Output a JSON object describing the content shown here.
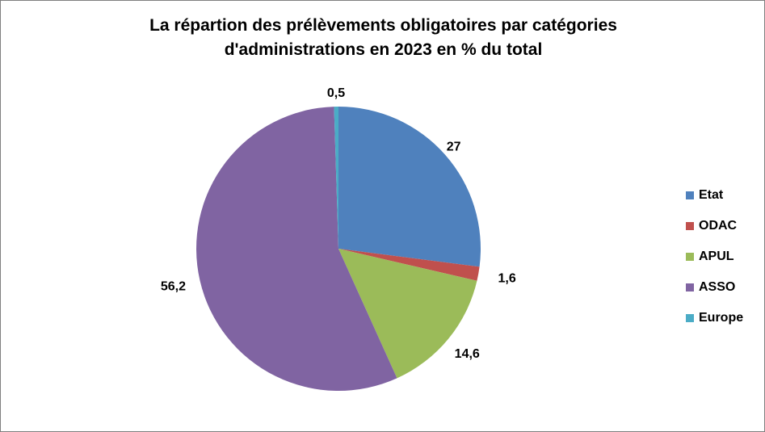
{
  "chart_data": {
    "type": "pie",
    "title_lines": [
      "La répartion des prélèvements obligatoires par catégories",
      "d'administrations  en 2023 en % du total"
    ],
    "categories": [
      "Etat",
      "ODAC",
      "APUL",
      "ASSO",
      "Europe"
    ],
    "values": [
      27,
      1.6,
      14.6,
      56.2,
      0.5
    ],
    "value_labels": [
      "27",
      "1,6",
      "14,6",
      "56,2",
      "0,5"
    ],
    "colors": [
      "#4f81bd",
      "#c0504d",
      "#9bbb59",
      "#8064a2",
      "#4bacc6"
    ],
    "legend_position": "right",
    "start_angle": "top",
    "direction": "clockwise"
  }
}
